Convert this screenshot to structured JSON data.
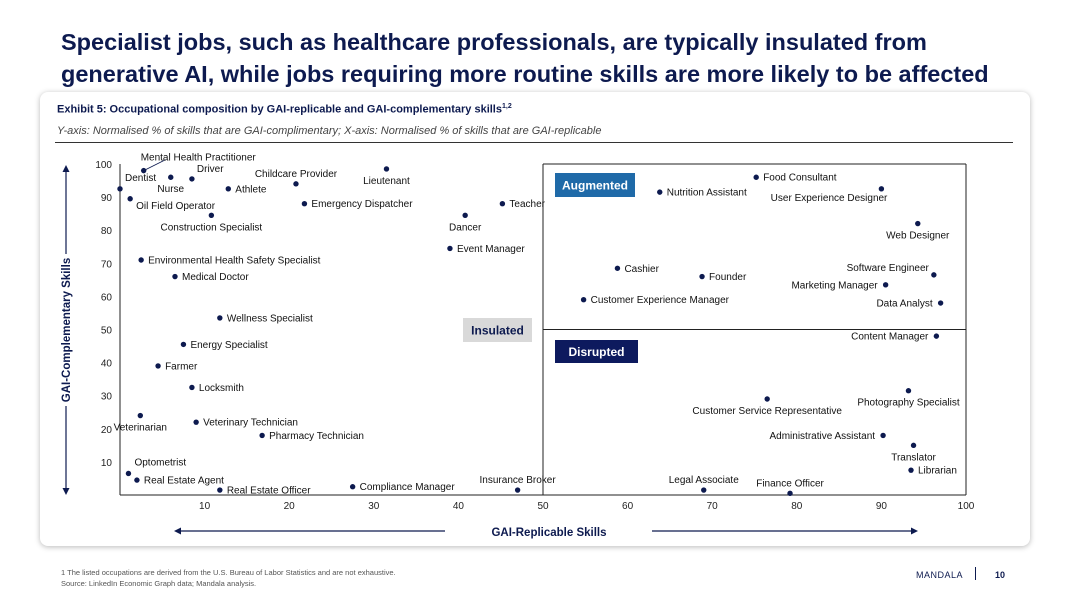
{
  "page": {
    "title": "Specialist jobs, such as healthcare professionals, are typically insulated from generative AI, while jobs requiring more routine skills are more likely to be affected",
    "exhibit": "Exhibit 5: Occupational composition by GAI-replicable and GAI-complementary skills",
    "exhibit_sup": "1,2",
    "subtitle": "Y-axis: Normalised % of skills that are GAI-complimentary; X-axis: Normalised % of skills that are GAI-replicable",
    "footnote_1": "1 The listed occupations are derived from the U.S. Bureau of Labor Statistics and are not exhaustive.",
    "footnote_2": "Source: LinkedIn Economic Graph data; Mandala analysis.",
    "brand": "MANDALA",
    "page_number": "10"
  },
  "colors": {
    "navy": "#0d1a4f",
    "augmented": "#1f6aa8",
    "disrupted": "#0d1a5e",
    "insulated_bg": "#d9d9d9"
  },
  "chart_data": {
    "type": "scatter",
    "xlabel": "GAI-Replicable Skills",
    "ylabel": "GAI-Complementary Skills",
    "xlim": [
      0,
      100
    ],
    "ylim": [
      0,
      100
    ],
    "xticks": [
      10,
      20,
      30,
      40,
      50,
      60,
      70,
      80,
      90,
      100
    ],
    "yticks": [
      10,
      20,
      30,
      40,
      50,
      60,
      70,
      80,
      90,
      100
    ],
    "quadrant_split": {
      "x": 50,
      "y": 50
    },
    "quadrants": [
      {
        "label": "Augmented",
        "position": "top-right",
        "style": "augmented"
      },
      {
        "label": "Insulated",
        "position": "center-left",
        "style": "insulated"
      },
      {
        "label": "Disrupted",
        "position": "bottom-right",
        "style": "disrupted"
      }
    ],
    "points": [
      {
        "label": "Mental Health Practitioner",
        "x": 2.8,
        "y": 98.0,
        "anchor": "leader"
      },
      {
        "label": "Dentist",
        "x": 0.0,
        "y": 92.5,
        "anchor": "above-right"
      },
      {
        "label": "Nurse",
        "x": 6.0,
        "y": 96.0,
        "anchor": "below"
      },
      {
        "label": "Driver",
        "x": 8.5,
        "y": 95.5,
        "anchor": "above-right"
      },
      {
        "label": "Childcare Provider",
        "x": 20.8,
        "y": 94.0,
        "anchor": "above"
      },
      {
        "label": "Athlete",
        "x": 12.8,
        "y": 92.5,
        "anchor": "right"
      },
      {
        "label": "Lieutenant",
        "x": 31.5,
        "y": 98.5,
        "anchor": "below"
      },
      {
        "label": "Oil Field Operator",
        "x": 1.2,
        "y": 89.5,
        "anchor": "below-right"
      },
      {
        "label": "Emergency Dispatcher",
        "x": 21.8,
        "y": 88.0,
        "anchor": "right"
      },
      {
        "label": "Construction Specialist",
        "x": 10.8,
        "y": 84.5,
        "anchor": "below"
      },
      {
        "label": "Dancer",
        "x": 40.8,
        "y": 84.5,
        "anchor": "below"
      },
      {
        "label": "Teacher",
        "x": 45.2,
        "y": 88.0,
        "anchor": "right"
      },
      {
        "label": "Event Manager",
        "x": 39.0,
        "y": 74.5,
        "anchor": "right"
      },
      {
        "label": "Environmental Health Safety Specialist",
        "x": 2.5,
        "y": 71.0,
        "anchor": "right"
      },
      {
        "label": "Medical Doctor",
        "x": 6.5,
        "y": 66.0,
        "anchor": "right"
      },
      {
        "label": "Wellness Specialist",
        "x": 11.8,
        "y": 53.5,
        "anchor": "right"
      },
      {
        "label": "Energy Specialist",
        "x": 7.5,
        "y": 45.5,
        "anchor": "right"
      },
      {
        "label": "Farmer",
        "x": 4.5,
        "y": 39.0,
        "anchor": "right"
      },
      {
        "label": "Locksmith",
        "x": 8.5,
        "y": 32.5,
        "anchor": "right"
      },
      {
        "label": "Veterinarian",
        "x": 2.4,
        "y": 24.0,
        "anchor": "below"
      },
      {
        "label": "Veterinary Technician",
        "x": 9.0,
        "y": 22.0,
        "anchor": "right"
      },
      {
        "label": "Pharmacy Technician",
        "x": 16.8,
        "y": 18.0,
        "anchor": "right"
      },
      {
        "label": "Optometrist",
        "x": 1.0,
        "y": 6.5,
        "anchor": "above-right"
      },
      {
        "label": "Real Estate Agent",
        "x": 2.0,
        "y": 4.5,
        "anchor": "right"
      },
      {
        "label": "Real Estate Officer",
        "x": 11.8,
        "y": 1.5,
        "anchor": "right"
      },
      {
        "label": "Compliance Manager",
        "x": 27.5,
        "y": 2.5,
        "anchor": "right"
      },
      {
        "label": "Insurance Broker",
        "x": 47.0,
        "y": 1.5,
        "anchor": "above"
      },
      {
        "label": "Food Consultant",
        "x": 75.2,
        "y": 96.0,
        "anchor": "right"
      },
      {
        "label": "Nutrition Assistant",
        "x": 63.8,
        "y": 91.5,
        "anchor": "right"
      },
      {
        "label": "User Experience Designer",
        "x": 90.0,
        "y": 92.5,
        "anchor": "below-left"
      },
      {
        "label": "Web Designer",
        "x": 94.3,
        "y": 82.0,
        "anchor": "below"
      },
      {
        "label": "Cashier",
        "x": 58.8,
        "y": 68.5,
        "anchor": "right"
      },
      {
        "label": "Founder",
        "x": 68.8,
        "y": 66.0,
        "anchor": "right"
      },
      {
        "label": "Software Engineer",
        "x": 96.2,
        "y": 66.5,
        "anchor": "above-left"
      },
      {
        "label": "Marketing Manager",
        "x": 90.5,
        "y": 63.5,
        "anchor": "left"
      },
      {
        "label": "Customer Experience Manager",
        "x": 54.8,
        "y": 59.0,
        "anchor": "right"
      },
      {
        "label": "Data Analyst",
        "x": 97.0,
        "y": 58.0,
        "anchor": "left"
      },
      {
        "label": "Content Manager",
        "x": 96.5,
        "y": 48.0,
        "anchor": "left"
      },
      {
        "label": "Photography Specialist",
        "x": 93.2,
        "y": 31.5,
        "anchor": "below"
      },
      {
        "label": "Customer Service Representative",
        "x": 76.5,
        "y": 29.0,
        "anchor": "below"
      },
      {
        "label": "Administrative Assistant",
        "x": 90.2,
        "y": 18.0,
        "anchor": "left"
      },
      {
        "label": "Translator",
        "x": 93.8,
        "y": 15.0,
        "anchor": "below"
      },
      {
        "label": "Librarian",
        "x": 93.5,
        "y": 7.5,
        "anchor": "right"
      },
      {
        "label": "Legal Associate",
        "x": 69.0,
        "y": 1.5,
        "anchor": "above"
      },
      {
        "label": "Finance Officer",
        "x": 79.2,
        "y": 0.5,
        "anchor": "above"
      }
    ]
  }
}
